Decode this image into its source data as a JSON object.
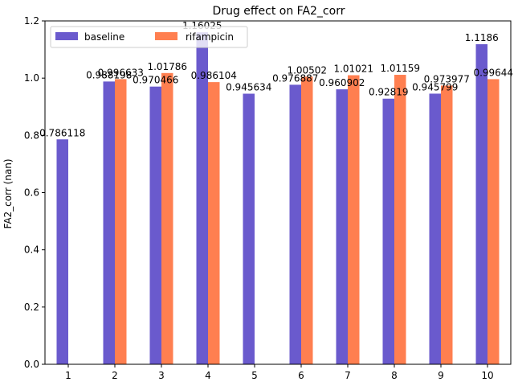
{
  "chart_data": {
    "type": "bar",
    "title": "Drug effect on FA2_corr",
    "xlabel": "",
    "ylabel": "FA2_corr (nan)",
    "ylim": [
      0,
      1.2
    ],
    "yticks": [
      "0.0",
      "0.2",
      "0.4",
      "0.6",
      "0.8",
      "1.0",
      "1.2"
    ],
    "categories": [
      "1",
      "2",
      "3",
      "4",
      "5",
      "6",
      "7",
      "8",
      "9",
      "10"
    ],
    "grid": false,
    "legend_position": "top-left",
    "series": [
      {
        "name": "baseline",
        "color": "#6a5acd",
        "values": [
          0.786118,
          0.988198,
          0.970466,
          1.16025,
          0.945634,
          0.976887,
          0.960902,
          0.92819,
          0.945799,
          1.1186
        ],
        "labels": [
          "0.786118",
          "0.988198",
          "0.970466",
          "1.16025",
          "0.945634",
          "0.976887",
          "0.960902",
          "0.92819",
          "0.945799",
          "1.1186"
        ]
      },
      {
        "name": "rifampicin",
        "color": "#ff7f50",
        "values": [
          null,
          0.996633,
          1.01786,
          0.986104,
          null,
          1.00502,
          1.01021,
          1.01159,
          0.973977,
          0.99644
        ],
        "labels": [
          "",
          "0.996633",
          "1.01786",
          "0.986104",
          "",
          "1.00502",
          "1.01021",
          "1.01159",
          "0.973977",
          "0.99644"
        ]
      }
    ]
  }
}
